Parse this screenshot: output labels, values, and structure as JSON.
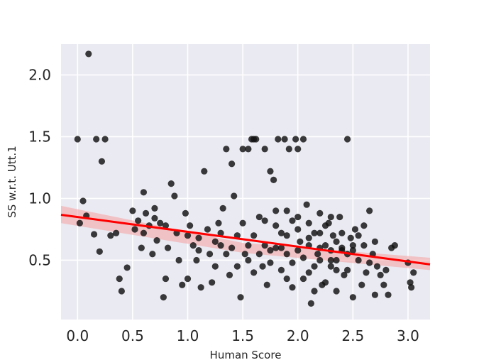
{
  "chart_data": {
    "type": "scatter",
    "title": "",
    "xlabel": "Human Score",
    "ylabel": "SS w.r.t. Utt.1",
    "xlim": [
      -0.15,
      3.2
    ],
    "ylim": [
      0.02,
      2.25
    ],
    "xticks": [
      0.0,
      0.5,
      1.0,
      1.5,
      2.0,
      2.5,
      3.0
    ],
    "xtick_labels": [
      "0.0",
      "0.5",
      "1.0",
      "1.5",
      "2.0",
      "2.5",
      "3.0"
    ],
    "yticks": [
      0.5,
      1.0,
      1.5,
      2.0
    ],
    "ytick_labels": [
      "0.5",
      "1.0",
      "1.5",
      "2.0"
    ],
    "grid": true,
    "style": "seaborn-darkgrid",
    "colors": {
      "background": "#EAEAF2",
      "grid": "#FFFFFF",
      "points": "#111111",
      "regression_line": "#FF0000",
      "confidence_band": "#F4A6A6"
    },
    "series": [
      {
        "points": [
          [
            0.0,
            1.48
          ],
          [
            0.1,
            2.17
          ],
          [
            0.17,
            1.48
          ],
          [
            0.22,
            1.3
          ],
          [
            0.25,
            1.48
          ],
          [
            0.02,
            0.8
          ],
          [
            0.05,
            0.98
          ],
          [
            0.08,
            0.86
          ],
          [
            0.15,
            0.71
          ],
          [
            0.2,
            0.57
          ],
          [
            0.3,
            0.7
          ],
          [
            0.35,
            0.72
          ],
          [
            0.38,
            0.35
          ],
          [
            0.4,
            0.25
          ],
          [
            0.45,
            0.44
          ],
          [
            0.5,
            0.9
          ],
          [
            0.52,
            0.75
          ],
          [
            0.55,
            0.82
          ],
          [
            0.58,
            0.6
          ],
          [
            0.6,
            1.05
          ],
          [
            0.62,
            0.88
          ],
          [
            0.65,
            0.78
          ],
          [
            0.68,
            0.55
          ],
          [
            0.7,
            0.92
          ],
          [
            0.72,
            0.66
          ],
          [
            0.75,
            0.8
          ],
          [
            0.78,
            0.2
          ],
          [
            0.8,
            0.35
          ],
          [
            0.82,
            0.6
          ],
          [
            0.85,
            1.12
          ],
          [
            0.88,
            1.02
          ],
          [
            0.9,
            0.72
          ],
          [
            0.92,
            0.5
          ],
          [
            0.95,
            0.3
          ],
          [
            0.98,
            0.88
          ],
          [
            1.0,
            0.35
          ],
          [
            1.02,
            0.78
          ],
          [
            1.05,
            0.62
          ],
          [
            1.08,
            0.5
          ],
          [
            1.1,
            0.68
          ],
          [
            1.12,
            0.28
          ],
          [
            1.15,
            1.22
          ],
          [
            1.18,
            0.75
          ],
          [
            1.2,
            0.55
          ],
          [
            1.22,
            0.32
          ],
          [
            1.25,
            0.45
          ],
          [
            1.28,
            0.8
          ],
          [
            1.3,
            0.62
          ],
          [
            1.32,
            0.92
          ],
          [
            1.35,
            1.4
          ],
          [
            1.38,
            0.38
          ],
          [
            1.4,
            1.28
          ],
          [
            1.42,
            1.02
          ],
          [
            1.45,
            0.7
          ],
          [
            1.48,
            0.2
          ],
          [
            1.5,
            1.4
          ],
          [
            1.52,
            0.55
          ],
          [
            1.55,
            1.4
          ],
          [
            1.58,
            1.48
          ],
          [
            1.6,
            1.48
          ],
          [
            1.62,
            1.48
          ],
          [
            1.65,
            0.85
          ],
          [
            1.68,
            0.45
          ],
          [
            1.7,
            1.4
          ],
          [
            1.72,
            0.3
          ],
          [
            1.75,
            1.22
          ],
          [
            1.78,
            1.15
          ],
          [
            1.8,
            0.9
          ],
          [
            1.82,
            1.48
          ],
          [
            1.85,
            0.6
          ],
          [
            1.88,
            1.48
          ],
          [
            1.9,
            0.35
          ],
          [
            1.92,
            1.4
          ],
          [
            1.95,
            0.82
          ],
          [
            1.98,
            1.48
          ],
          [
            2.0,
            1.4
          ],
          [
            2.02,
            0.65
          ],
          [
            2.05,
            1.48
          ],
          [
            2.08,
            0.95
          ],
          [
            2.1,
            0.4
          ],
          [
            2.12,
            0.15
          ],
          [
            2.15,
            0.72
          ],
          [
            2.18,
            0.55
          ],
          [
            2.2,
            0.88
          ],
          [
            2.22,
            0.3
          ],
          [
            2.25,
            0.62
          ],
          [
            2.28,
            0.8
          ],
          [
            2.3,
            0.45
          ],
          [
            2.32,
            0.7
          ],
          [
            2.35,
            0.25
          ],
          [
            2.38,
            0.85
          ],
          [
            2.4,
            0.58
          ],
          [
            2.42,
            0.38
          ],
          [
            2.45,
            1.48
          ],
          [
            2.48,
            0.68
          ],
          [
            2.5,
            0.2
          ],
          [
            2.52,
            0.75
          ],
          [
            2.55,
            0.5
          ],
          [
            2.58,
            0.3
          ],
          [
            2.6,
            0.62
          ],
          [
            2.62,
            0.4
          ],
          [
            2.65,
            0.9
          ],
          [
            2.68,
            0.55
          ],
          [
            2.7,
            0.22
          ],
          [
            2.72,
            0.45
          ],
          [
            2.75,
            0.38
          ],
          [
            2.78,
            0.3
          ],
          [
            2.8,
            0.42
          ],
          [
            2.82,
            0.22
          ],
          [
            2.85,
            0.6
          ],
          [
            2.88,
            0.62
          ],
          [
            3.0,
            0.48
          ],
          [
            3.02,
            0.32
          ],
          [
            3.03,
            0.28
          ],
          [
            3.05,
            0.4
          ],
          [
            1.8,
            0.6
          ],
          [
            1.85,
            0.72
          ],
          [
            1.9,
            0.55
          ],
          [
            1.95,
            0.48
          ],
          [
            2.0,
            0.75
          ],
          [
            2.05,
            0.52
          ],
          [
            2.1,
            0.68
          ],
          [
            2.15,
            0.45
          ],
          [
            2.2,
            0.6
          ],
          [
            2.25,
            0.78
          ],
          [
            2.3,
            0.5
          ],
          [
            2.35,
            0.65
          ],
          [
            2.4,
            0.72
          ],
          [
            2.45,
            0.42
          ],
          [
            2.5,
            0.58
          ],
          [
            1.6,
            0.7
          ],
          [
            1.65,
            0.55
          ],
          [
            1.7,
            0.62
          ],
          [
            1.75,
            0.48
          ],
          [
            1.8,
            0.78
          ],
          [
            2.0,
            0.58
          ],
          [
            2.1,
            0.62
          ],
          [
            2.2,
            0.5
          ],
          [
            2.3,
            0.58
          ],
          [
            2.4,
            0.6
          ],
          [
            1.7,
            0.82
          ],
          [
            1.9,
            0.7
          ],
          [
            2.1,
            0.8
          ],
          [
            2.3,
            0.85
          ],
          [
            2.5,
            0.62
          ],
          [
            0.6,
            0.72
          ],
          [
            0.7,
            0.84
          ],
          [
            0.8,
            0.78
          ],
          [
            1.0,
            0.7
          ],
          [
            1.1,
            0.58
          ],
          [
            1.3,
            0.72
          ],
          [
            1.4,
            0.6
          ],
          [
            1.5,
            0.8
          ],
          [
            1.55,
            0.62
          ],
          [
            1.6,
            0.4
          ],
          [
            1.9,
            0.9
          ],
          [
            2.0,
            0.85
          ],
          [
            2.2,
            0.72
          ],
          [
            2.35,
            0.5
          ],
          [
            2.45,
            0.55
          ],
          [
            2.55,
            0.7
          ],
          [
            2.6,
            0.78
          ],
          [
            2.65,
            0.48
          ],
          [
            2.7,
            0.65
          ],
          [
            1.95,
            0.28
          ],
          [
            2.05,
            0.35
          ],
          [
            2.15,
            0.25
          ],
          [
            2.25,
            0.32
          ],
          [
            2.35,
            0.42
          ],
          [
            1.85,
            0.42
          ],
          [
            1.75,
            0.58
          ],
          [
            1.55,
            0.5
          ],
          [
            1.45,
            0.45
          ],
          [
            1.35,
            0.55
          ],
          [
            1.25,
            0.65
          ]
        ]
      }
    ],
    "regression": {
      "slope": -0.12,
      "intercept": 0.85,
      "x_range": [
        -0.15,
        3.2
      ],
      "ci_low": [
        0.8,
        0.56,
        0.42
      ],
      "ci_high": [
        0.94,
        0.64,
        0.52
      ],
      "ci_x": [
        -0.15,
        1.5,
        3.2
      ]
    }
  }
}
